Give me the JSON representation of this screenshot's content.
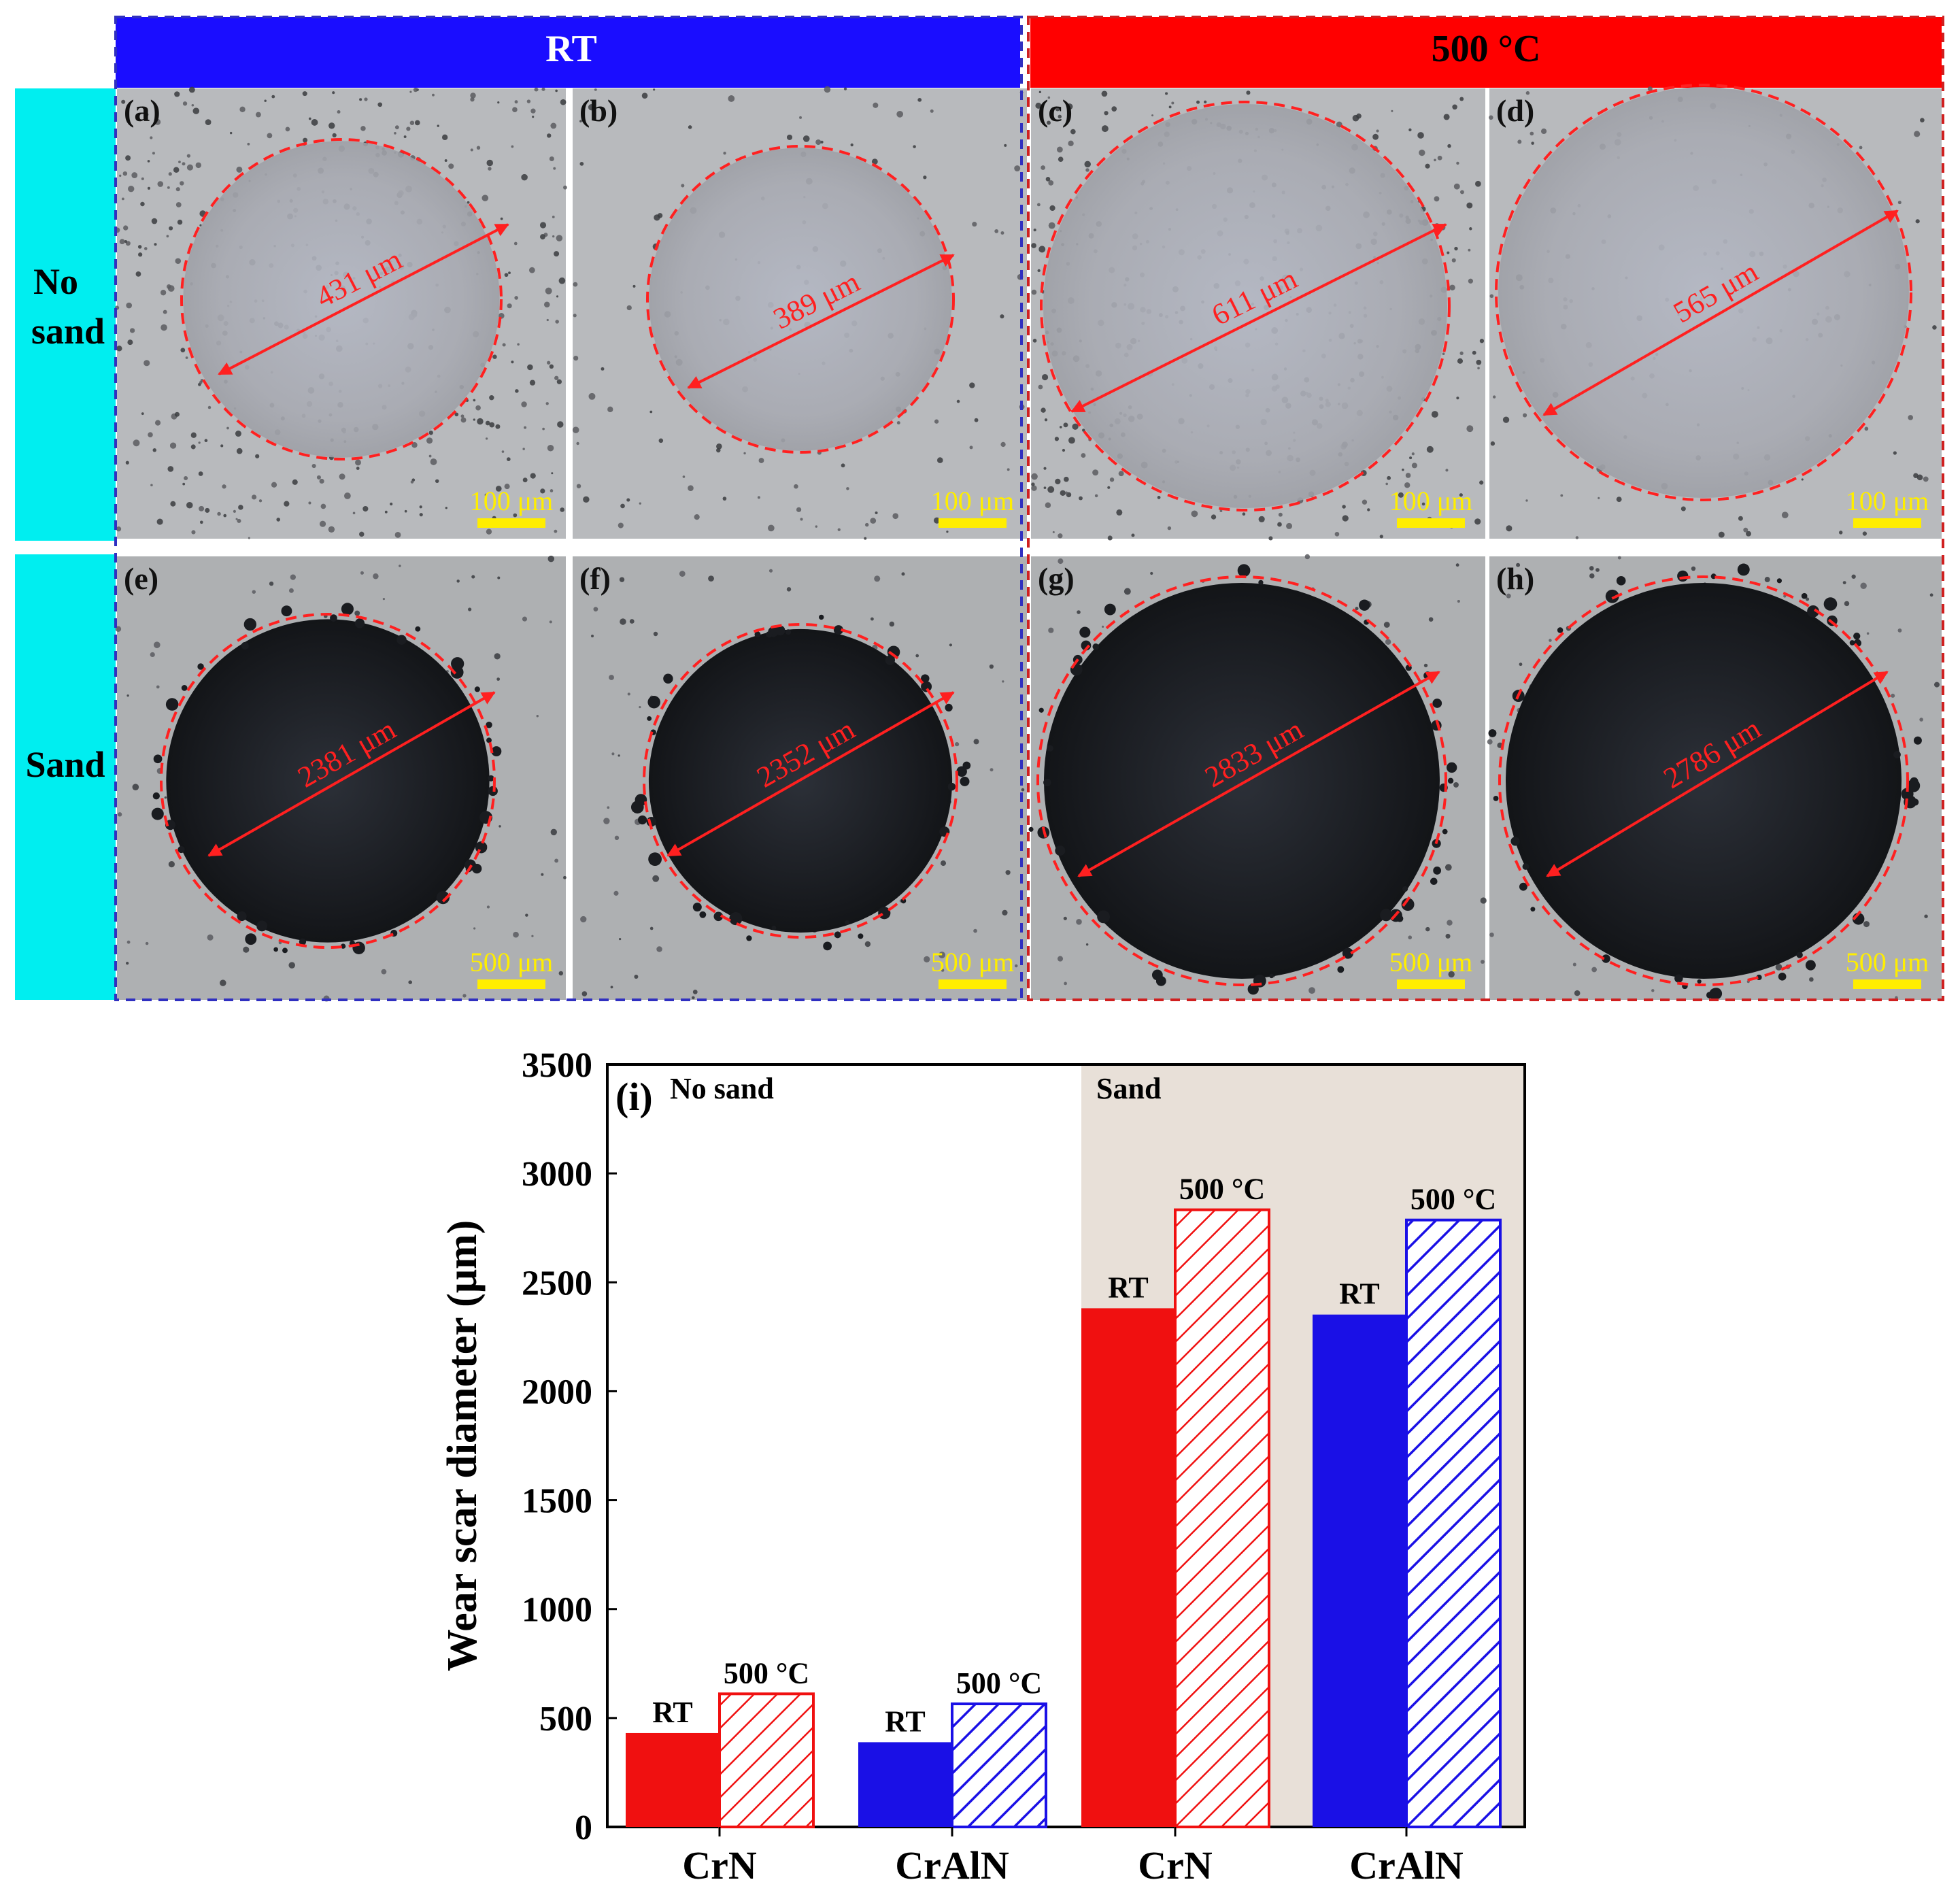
{
  "headers": {
    "left": "RT",
    "right": "500 °C",
    "row1": [
      "No",
      "sand"
    ],
    "row2": "Sand"
  },
  "colors": {
    "rt_header": "#1a0dff",
    "hot_header": "#ff0000",
    "row_header": "#00eef0",
    "red_bar": "#f01010",
    "blue_bar": "#1a10e6",
    "sand_bg": "#e8e0d8",
    "scar_ring": "#ff2020",
    "scale_bar": "#ffee00"
  },
  "panels": [
    {
      "tag": "(a)",
      "measure": "431 μm",
      "scale": "100 μm",
      "style": "light-scar"
    },
    {
      "tag": "(b)",
      "measure": "389 μm",
      "scale": "100 μm",
      "style": "light-scar"
    },
    {
      "tag": "(c)",
      "measure": "611 μm",
      "scale": "100 μm",
      "style": "light-scar"
    },
    {
      "tag": "(d)",
      "measure": "565 μm",
      "scale": "100 μm",
      "style": "light-scar"
    },
    {
      "tag": "(e)",
      "measure": "2381 μm",
      "scale": "500 μm",
      "style": "dark-scar"
    },
    {
      "tag": "(f)",
      "measure": "2352 μm",
      "scale": "500 μm",
      "style": "dark-scar"
    },
    {
      "tag": "(g)",
      "measure": "2833 μm",
      "scale": "500 μm",
      "style": "dark-scar"
    },
    {
      "tag": "(h)",
      "measure": "2786 μm",
      "scale": "500 μm",
      "style": "dark-scar"
    }
  ],
  "chart_data": {
    "type": "bar",
    "panel_label": "(i)",
    "ylabel": "Wear scar diameter (μm)",
    "ylim": [
      0,
      3500
    ],
    "yticks": [
      0,
      500,
      1000,
      1500,
      2000,
      2500,
      3000,
      3500
    ],
    "regions": [
      {
        "label": "No sand",
        "shaded": false
      },
      {
        "label": "Sand",
        "shaded": true
      }
    ],
    "categories": [
      "CrN",
      "CrAlN",
      "CrN",
      "CrAlN"
    ],
    "groups": [
      {
        "category": "CrN",
        "region": "No sand",
        "color": "#f01010",
        "bars": [
          {
            "label": "RT",
            "value": 431,
            "fill": "solid"
          },
          {
            "label": "500 °C",
            "value": 611,
            "fill": "hatched"
          }
        ]
      },
      {
        "category": "CrAlN",
        "region": "No sand",
        "color": "#1a10e6",
        "bars": [
          {
            "label": "RT",
            "value": 389,
            "fill": "solid"
          },
          {
            "label": "500 °C",
            "value": 565,
            "fill": "hatched"
          }
        ]
      },
      {
        "category": "CrN",
        "region": "Sand",
        "color": "#f01010",
        "bars": [
          {
            "label": "RT",
            "value": 2381,
            "fill": "solid"
          },
          {
            "label": "500 °C",
            "value": 2833,
            "fill": "hatched"
          }
        ]
      },
      {
        "category": "CrAlN",
        "region": "Sand",
        "color": "#1a10e6",
        "bars": [
          {
            "label": "RT",
            "value": 2352,
            "fill": "solid"
          },
          {
            "label": "500 °C",
            "value": 2786,
            "fill": "hatched"
          }
        ]
      }
    ]
  }
}
